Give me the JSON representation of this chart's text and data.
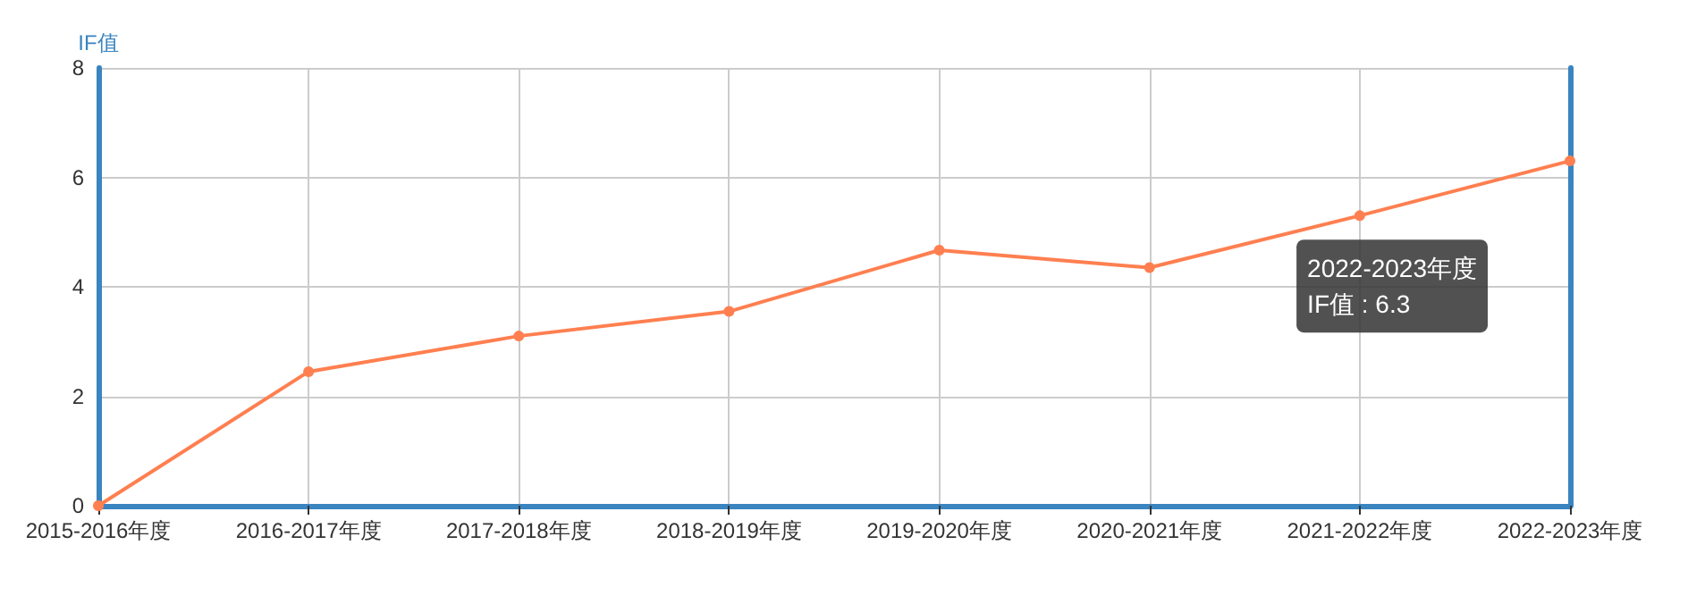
{
  "chart_data": {
    "type": "line",
    "ylabel": "IF值",
    "categories": [
      "2015-2016年度",
      "2016-2017年度",
      "2017-2018年度",
      "2018-2019年度",
      "2019-2020年度",
      "2020-2021年度",
      "2021-2022年度",
      "2022-2023年度"
    ],
    "series": [
      {
        "color": "#ff7f50",
        "values": [
          0,
          2.45,
          3.1,
          3.55,
          4.67,
          4.35,
          5.3,
          6.3
        ]
      }
    ],
    "ylim": [
      0,
      8
    ],
    "yticks": [
      0,
      2,
      4,
      6,
      8
    ],
    "grid": true,
    "marker": "circle",
    "line_style": "solid",
    "annotations": [
      "2022-2023年度\nIF值 : 6.3"
    ]
  }
}
